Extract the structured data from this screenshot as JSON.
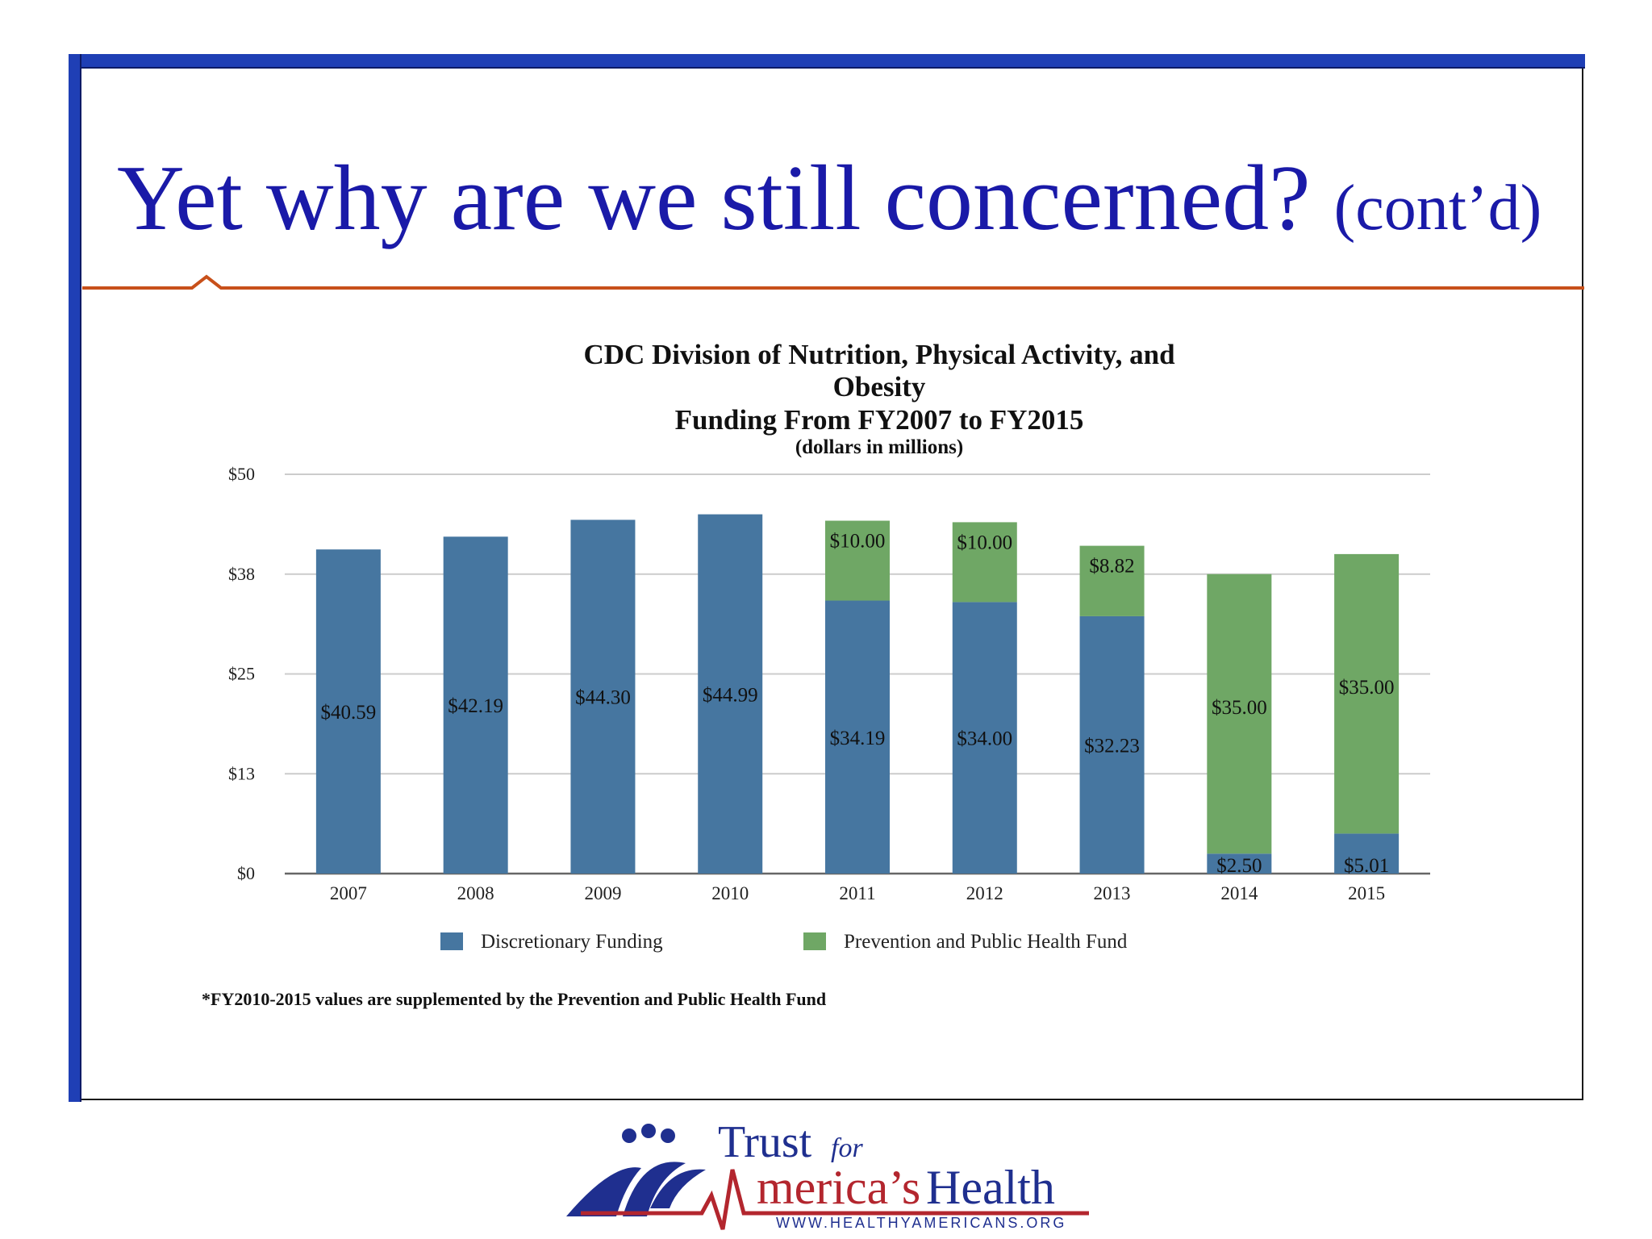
{
  "slide": {
    "title": "Yet why are we still concerned?",
    "title_suffix": "(cont’d)"
  },
  "colors": {
    "frame_bar": "#1f3fb5",
    "title_text": "#1a1aa8",
    "rule": "#c8501a",
    "discretionary": "#4676a0",
    "prevention": "#6fa765"
  },
  "chart_data": {
    "type": "bar",
    "stacked": true,
    "title_lines": [
      "CDC Division of Nutrition, Physical Activity, and",
      "Obesity",
      "Funding From FY2007 to FY2015"
    ],
    "subtitle": "(dollars in millions)",
    "categories": [
      "2007",
      "2008",
      "2009",
      "2010",
      "2011",
      "2012",
      "2013",
      "2014",
      "2015"
    ],
    "series": [
      {
        "name": "Discretionary Funding",
        "values": [
          40.59,
          42.19,
          44.3,
          44.99,
          34.19,
          34.0,
          32.23,
          2.5,
          5.01
        ],
        "labels": [
          "$40.59",
          "$42.19",
          "$44.30",
          "$44.99",
          "$34.19",
          "$34.00",
          "$32.23",
          "$2.50",
          "$5.01"
        ]
      },
      {
        "name": "Prevention and Public Health Fund",
        "values": [
          0,
          0,
          0,
          0,
          10.0,
          10.0,
          8.82,
          35.0,
          35.0
        ],
        "labels": [
          "",
          "",
          "",
          "",
          "$10.00",
          "$10.00",
          "$8.82",
          "$35.00",
          "$35.00"
        ]
      }
    ],
    "yticks": [
      0,
      12.5,
      25,
      37.5,
      50
    ],
    "ytick_labels": [
      "$0",
      "$13",
      "$25",
      "$38",
      "$50"
    ],
    "ylim": [
      0,
      50
    ],
    "grid": true,
    "legend_position": "bottom",
    "footnote": "*FY2010-2015 values are supplemented by the Prevention and Public Health Fund"
  },
  "logo": {
    "text_trust": "Trust",
    "text_for": "for",
    "text_america": "merica’s",
    "text_health": "Health",
    "url": "WWW.HEALTHYAMERICANS.ORG"
  }
}
